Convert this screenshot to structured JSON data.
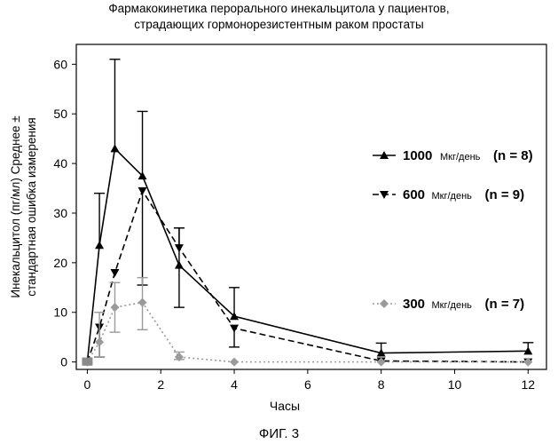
{
  "title_lines": [
    "Фармакокинетика перорального инекальцитола у пациентов,",
    "страдающих гормонорезистентным раком простаты"
  ],
  "figure_caption": "ФИГ. 3",
  "chart_data": {
    "type": "line",
    "xlabel": "Часы",
    "ylabel_lines": [
      "Инекальцитол (пг/мл) Среднее ±",
      "стандартная ошибка измерения"
    ],
    "xlim": [
      -0.3,
      12.5
    ],
    "ylim": [
      -1.5,
      64
    ],
    "xticks": [
      0,
      2,
      4,
      6,
      8,
      10,
      12
    ],
    "yticks": [
      0,
      10,
      20,
      30,
      40,
      50,
      60
    ],
    "grid": false,
    "legend_placement": "right",
    "series": [
      {
        "name": "1000",
        "unit": "Мкг/день",
        "n_label": "(n = 8)",
        "marker": "triangle-up",
        "line_style": "solid",
        "color": "#000000",
        "x": [
          0,
          0.33,
          0.75,
          1.5,
          2.5,
          4,
          8,
          12
        ],
        "y": [
          0,
          23.5,
          43,
          37.5,
          19.5,
          9.2,
          1.8,
          2.2
        ],
        "err_up": [
          0,
          10.5,
          18,
          13,
          7.5,
          5.8,
          2,
          1.7
        ],
        "err_down": [
          0,
          0,
          0,
          0,
          8.5,
          0,
          0,
          0
        ]
      },
      {
        "name": "600",
        "unit": "Мкг/день",
        "n_label": "(n = 9)",
        "marker": "triangle-down",
        "line_style": "dashed",
        "color": "#000000",
        "x": [
          0,
          0.33,
          0.75,
          1.5,
          2.5,
          4,
          8,
          12
        ],
        "y": [
          0,
          7,
          18,
          34.5,
          23,
          6.8,
          0.2,
          0
        ],
        "err_up": [
          0,
          0,
          0,
          0,
          4,
          0,
          0,
          0
        ],
        "err_down": [
          0,
          6,
          0,
          19,
          0,
          3.8,
          0,
          0
        ]
      },
      {
        "name": "300",
        "unit": "Мкг/день",
        "n_label": "(n = 7)",
        "marker": "diamond",
        "line_style": "dotted",
        "color": "#9a9a9a",
        "x": [
          0,
          0.33,
          0.75,
          1.5,
          2.5,
          4,
          8,
          12
        ],
        "y": [
          0,
          4,
          11,
          12,
          1,
          0,
          0,
          0
        ],
        "err_up": [
          0,
          6,
          5,
          5,
          1,
          0,
          0,
          0
        ],
        "err_down": [
          0,
          3,
          5,
          5.5,
          0.5,
          0,
          0,
          0
        ]
      }
    ]
  }
}
